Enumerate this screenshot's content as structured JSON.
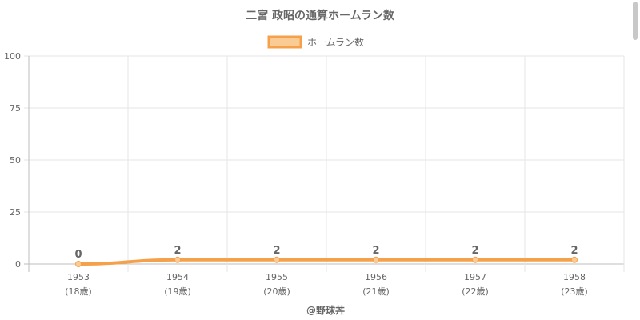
{
  "chart_data": {
    "type": "line",
    "title": "二宮 政昭の通算ホームラン数",
    "legend": {
      "label": "ホームラン数",
      "placement": "top-center"
    },
    "categories": [
      "1953",
      "1954",
      "1955",
      "1956",
      "1957",
      "1958"
    ],
    "sublabels": [
      "(18歳)",
      "(19歳)",
      "(20歳)",
      "(21歳)",
      "(22歳)",
      "(23歳)"
    ],
    "series": [
      {
        "name": "ホームラン数",
        "values": [
          0,
          2,
          2,
          2,
          2,
          2
        ]
      }
    ],
    "ylim": [
      0,
      100
    ],
    "yticks": [
      0,
      25,
      50,
      75,
      100
    ],
    "grid": true,
    "data_labels": true,
    "colors": {
      "line": "#f5a04a",
      "fill": "#fbcb94",
      "grid": "#e6e6e6",
      "text": "#666666"
    },
    "credit": "@野球丼"
  }
}
